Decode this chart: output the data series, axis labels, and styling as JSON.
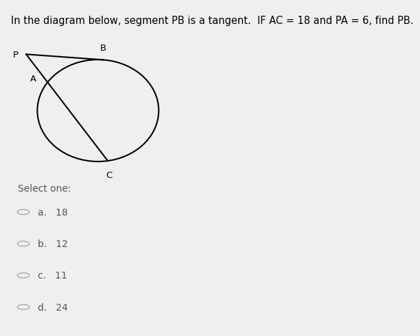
{
  "title": "In the diagram below, segment PB is a tangent.  IF AC = 18 and PA = 6, find PB.",
  "title_bg": "#e8f500",
  "title_fontsize": 10.5,
  "fig_bg": "#efefef",
  "diagram_bg": "#ffffff",
  "select_one_text": "Select one:",
  "options": [
    "a.   18",
    "b.   12",
    "c.   11",
    "d.   24"
  ],
  "label_P": "P",
  "label_A": "A",
  "label_B": "B",
  "label_C": "C"
}
